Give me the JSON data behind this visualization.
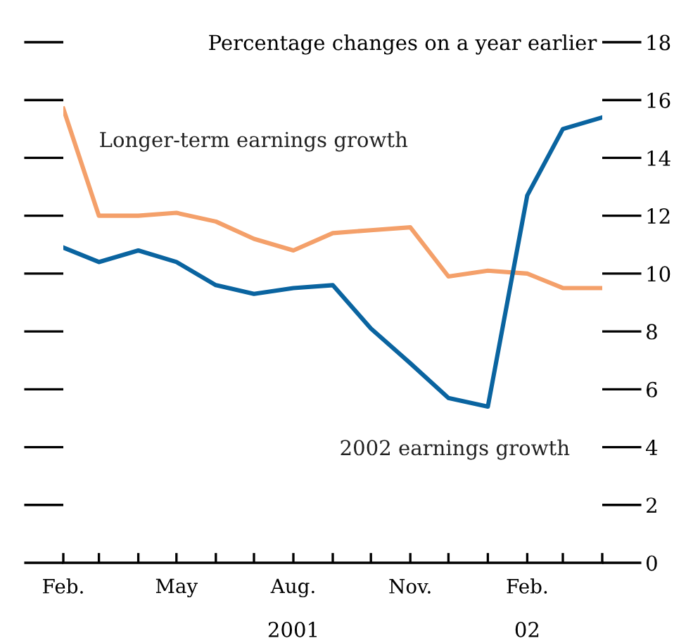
{
  "chart_data": {
    "type": "line",
    "ylabel": "Percentage changes on a year earlier",
    "x": [
      "2001-02",
      "2001-03",
      "2001-04",
      "2001-05",
      "2001-06",
      "2001-07",
      "2001-08",
      "2001-09",
      "2001-10",
      "2001-11",
      "2001-12",
      "2002-01",
      "2002-02",
      "2002-03",
      "2002-04"
    ],
    "series": [
      {
        "name": "Longer-term earnings growth",
        "color": "#f4a06a",
        "values": [
          15.7,
          12.0,
          12.0,
          12.1,
          11.8,
          11.2,
          10.8,
          11.4,
          11.5,
          11.6,
          9.9,
          10.1,
          10.0,
          9.5,
          9.5
        ]
      },
      {
        "name": "2002 earnings growth",
        "color": "#0a64a0",
        "values": [
          10.9,
          10.4,
          10.8,
          10.4,
          9.6,
          9.3,
          9.5,
          9.6,
          8.1,
          6.9,
          5.7,
          5.4,
          12.7,
          15.0,
          15.4
        ]
      }
    ],
    "xlim": [
      "2001-02",
      "2002-04"
    ],
    "xticks": [
      {
        "value": "2001-02",
        "label": "Feb."
      },
      {
        "value": "2001-03",
        "label": null
      },
      {
        "value": "2001-04",
        "label": null
      },
      {
        "value": "2001-05",
        "label": "May"
      },
      {
        "value": "2001-06",
        "label": null
      },
      {
        "value": "2001-07",
        "label": null
      },
      {
        "value": "2001-08",
        "label": "Aug."
      },
      {
        "value": "2001-09",
        "label": null
      },
      {
        "value": "2001-10",
        "label": null
      },
      {
        "value": "2001-11",
        "label": "Nov."
      },
      {
        "value": "2001-12",
        "label": null
      },
      {
        "value": "2002-01",
        "label": null
      },
      {
        "value": "2002-02",
        "label": "Feb."
      },
      {
        "value": "2002-03",
        "label": null
      },
      {
        "value": "2002-04",
        "label": null
      }
    ],
    "ylim": [
      0,
      18
    ],
    "yticks": [
      0,
      2,
      4,
      6,
      8,
      10,
      12,
      14,
      16,
      18
    ],
    "annotations": [
      "2001",
      "02"
    ],
    "legend": false,
    "grid": false,
    "line_style": "solid",
    "marker": "none"
  }
}
